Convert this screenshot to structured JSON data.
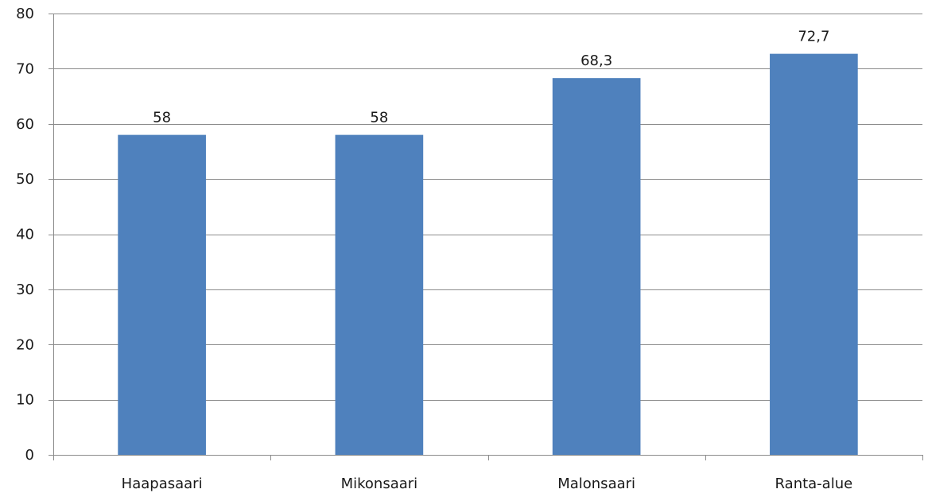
{
  "chart_data": {
    "type": "bar",
    "categories": [
      "Haapasaari",
      "Mikonsaari",
      "Malonsaari",
      "Ranta-alue"
    ],
    "values": [
      58,
      58,
      68.3,
      72.7
    ],
    "value_labels": [
      "58",
      "58",
      "68,3",
      "72,7"
    ],
    "ylim": [
      0,
      80
    ],
    "yticks": [
      0,
      10,
      20,
      30,
      40,
      50,
      60,
      70,
      80
    ],
    "ytick_labels": [
      "0",
      "10",
      "20",
      "30",
      "40",
      "50",
      "60",
      "70",
      "80"
    ],
    "grid": true,
    "bar_color": "#4f81bd",
    "grid_color": "#8c8c8c"
  }
}
